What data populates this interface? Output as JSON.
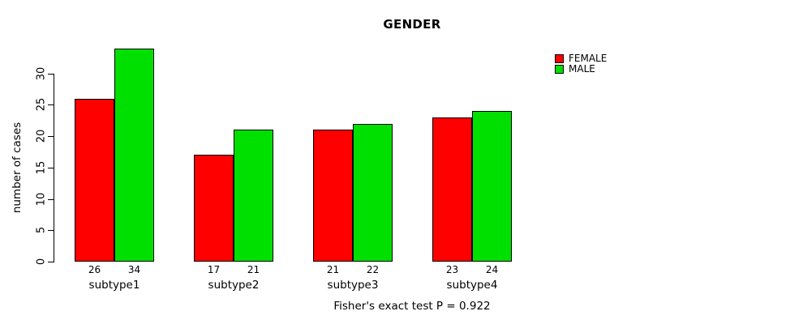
{
  "title": "GENDER",
  "caption": "Fisher's exact test P = 0.922",
  "colors": {
    "female": "#FF0000",
    "male": "#00E000",
    "axis": "#000000",
    "background": "#FFFFFF"
  },
  "legend": {
    "position": "top-right",
    "items": [
      {
        "label": "FEMALE",
        "color": "#FF0000"
      },
      {
        "label": "MALE",
        "color": "#00E000"
      }
    ]
  },
  "chart_data": {
    "type": "bar",
    "title": "GENDER",
    "categories": [
      "subtype1",
      "subtype2",
      "subtype3",
      "subtype4"
    ],
    "series": [
      {
        "name": "FEMALE",
        "color": "#FF0000",
        "values": [
          26,
          17,
          21,
          23
        ]
      },
      {
        "name": "MALE",
        "color": "#00E000",
        "values": [
          34,
          21,
          22,
          24
        ]
      }
    ],
    "xlabel": "",
    "ylabel": "number of cases",
    "yticks": [
      0,
      5,
      10,
      15,
      20,
      25,
      30
    ],
    "ylim": [
      0,
      34
    ],
    "grid": false,
    "bar_value_labels": true,
    "legend_position": "top-right",
    "annotation": "Fisher's exact test P = 0.922"
  }
}
